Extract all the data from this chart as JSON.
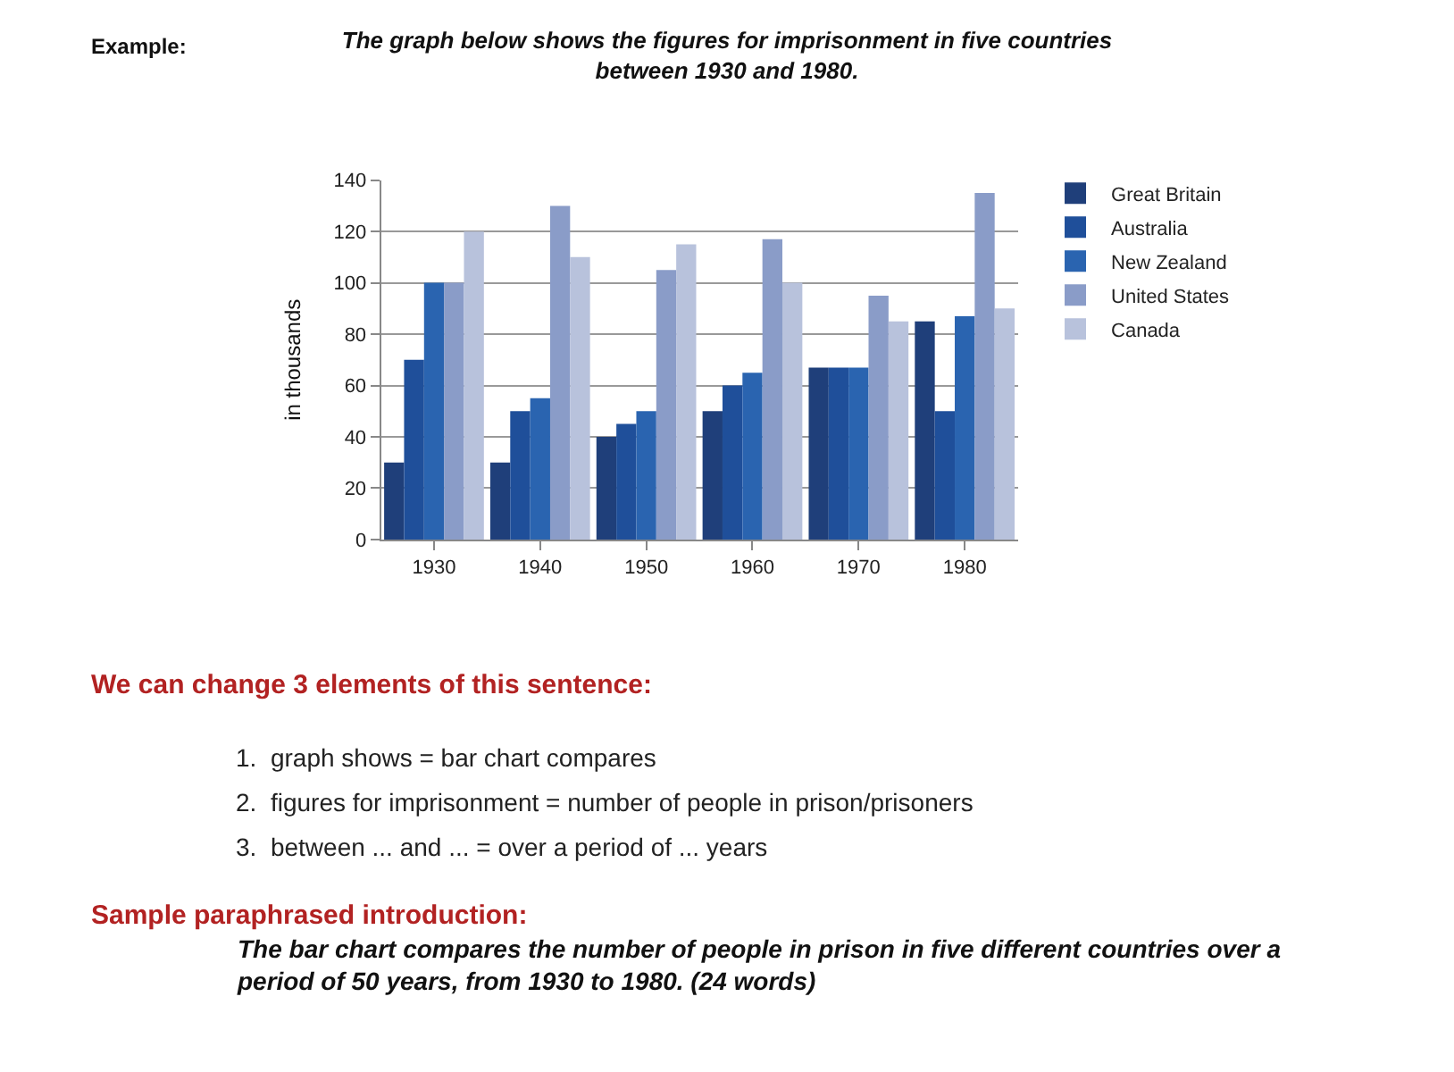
{
  "chart_data": {
    "type": "bar",
    "title": "The graph below shows the figures for imprisonment in five countries\nbetween 1930 and 1980.",
    "ylabel": "in thousands",
    "categories": [
      "1930",
      "1940",
      "1950",
      "1960",
      "1970",
      "1980"
    ],
    "series": [
      {
        "name": "Great Britain",
        "color": "#1f3f7a",
        "values": [
          30,
          30,
          40,
          50,
          67,
          85
        ]
      },
      {
        "name": "Australia",
        "color": "#1f4f9a",
        "values": [
          70,
          50,
          45,
          60,
          67,
          50
        ]
      },
      {
        "name": "New Zealand",
        "color": "#2a64b0",
        "values": [
          100,
          55,
          50,
          65,
          67,
          87
        ]
      },
      {
        "name": "United States",
        "color": "#8a9cc8",
        "values": [
          100,
          130,
          105,
          117,
          95,
          135
        ]
      },
      {
        "name": "Canada",
        "color": "#b8c2dc",
        "values": [
          120,
          110,
          115,
          100,
          85,
          90
        ]
      }
    ],
    "ylim": [
      0,
      140
    ],
    "yticks": [
      0,
      20,
      40,
      60,
      80,
      100,
      120,
      140
    ],
    "grid": "y",
    "legend": "right",
    "annotations": [
      "Example:",
      "We can change 3 elements of this sentence:",
      "1.  graph shows = bar chart compares",
      "2.  figures for imprisonment = number of people in prison/prisoners",
      "3.  between ... and ... = over a period of ... years",
      "Sample paraphrased introduction:",
      "The bar chart compares the number of people in prison in five different countries over a\nperiod of 50 years, from 1930 to 1980. (24 words)"
    ]
  }
}
